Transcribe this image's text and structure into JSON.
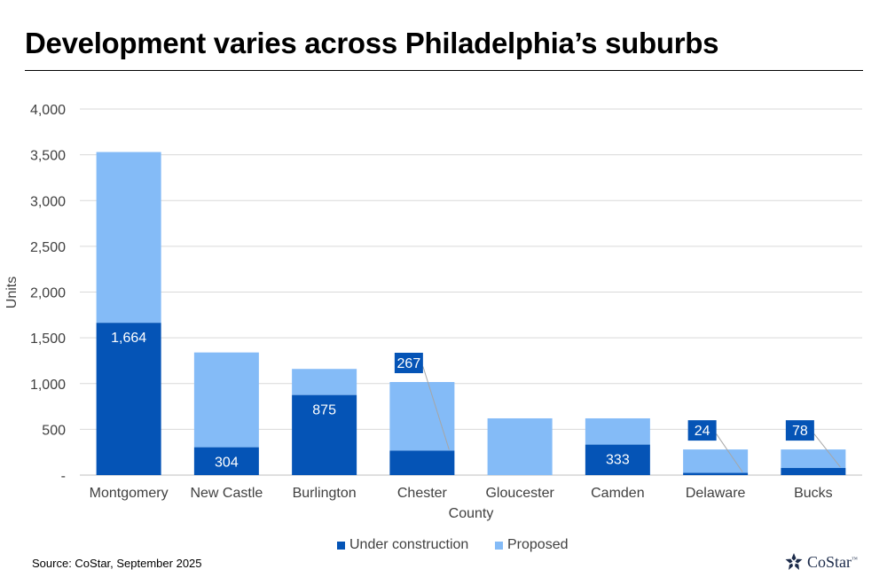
{
  "title": "Development varies across Philadelphia’s suburbs",
  "source": "Source: CoStar, September 2025",
  "logo": {
    "text": "CoStar",
    "tm": "™",
    "icon": "costar-star-icon"
  },
  "colors": {
    "under_construction": "#0554b6",
    "proposed": "#84bbf7",
    "label_box": "#0554b6",
    "gridline": "#d9d9d9"
  },
  "chart_data": {
    "type": "bar",
    "stacked": true,
    "xlabel": "County",
    "ylabel": "Units",
    "ylim": [
      0,
      4000
    ],
    "yticks": [
      0,
      500,
      1000,
      1500,
      2000,
      2500,
      3000,
      3500,
      4000
    ],
    "ytick_labels": [
      "-",
      "500",
      "1,000",
      "1,500",
      "2,000",
      "2,500",
      "3,000",
      "3,500",
      "4,000"
    ],
    "categories": [
      "Montgomery",
      "New Castle",
      "Burlington",
      "Chester",
      "Gloucester",
      "Camden",
      "Delaware",
      "Bucks"
    ],
    "series": [
      {
        "name": "Under construction",
        "values": [
          1664,
          304,
          875,
          267,
          0,
          333,
          24,
          78
        ]
      },
      {
        "name": "Proposed",
        "values": [
          1866,
          1036,
          285,
          750,
          620,
          287,
          256,
          202
        ]
      }
    ],
    "data_labels": [
      "1,664",
      "304",
      "875",
      "267",
      "",
      "333",
      "24",
      "78"
    ],
    "grid": true,
    "legend": "bottom"
  }
}
